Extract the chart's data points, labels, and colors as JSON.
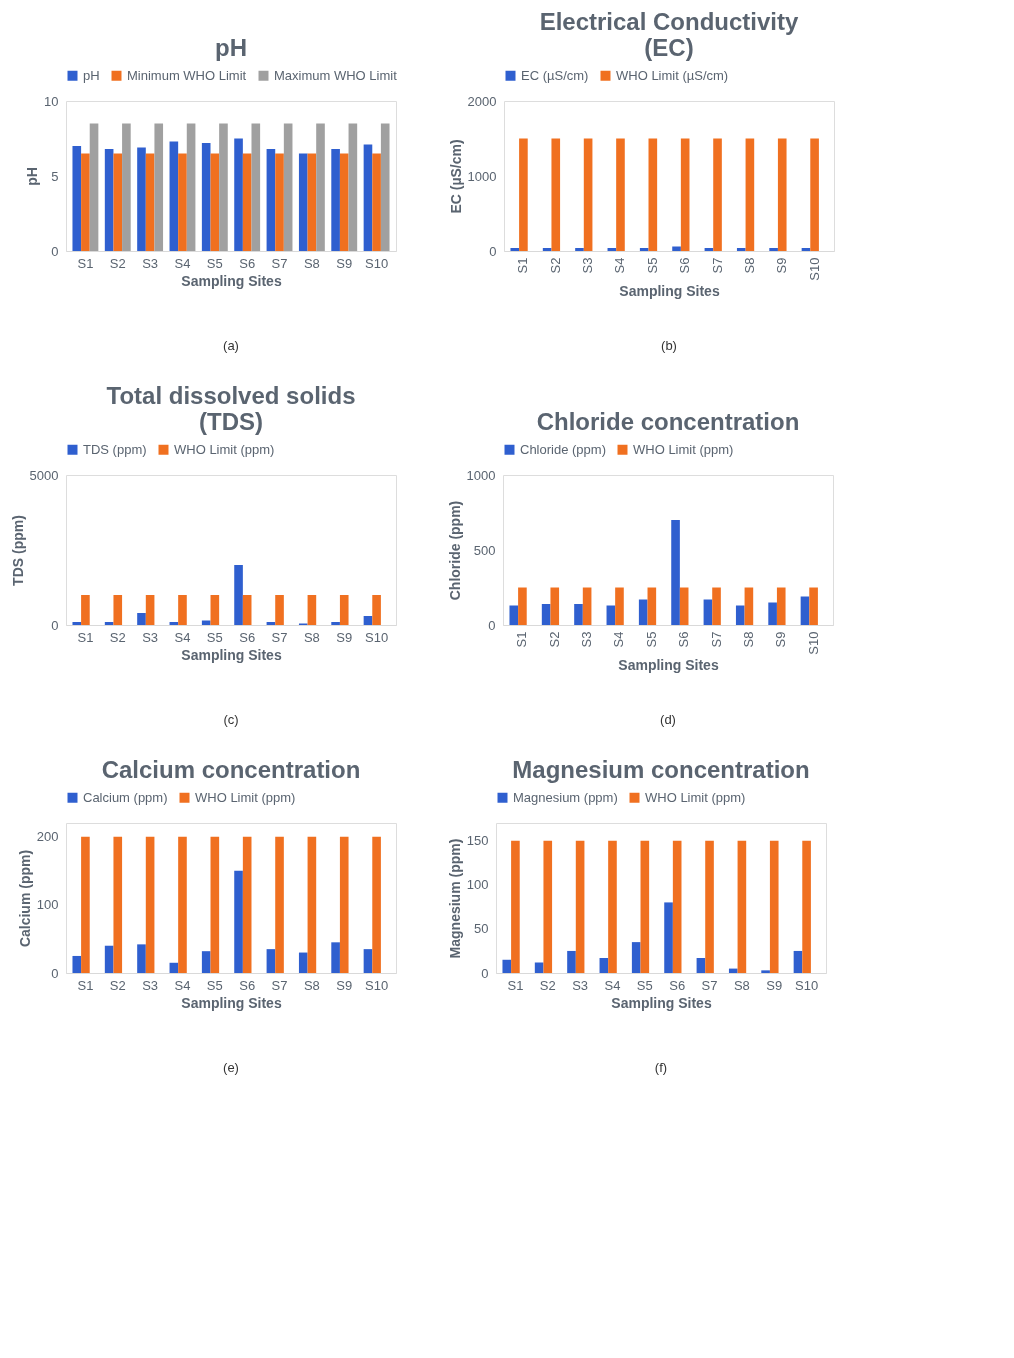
{
  "chart_data": [
    {
      "type": "bar",
      "title": "pH",
      "xlabel": "Sampling Sites",
      "ylabel": "pH",
      "categories": [
        "S1",
        "S2",
        "S3",
        "S4",
        "S5",
        "S6",
        "S7",
        "S8",
        "S9",
        "S10"
      ],
      "series": [
        {
          "name": "pH",
          "color": "#2f5fcf",
          "values": [
            7.0,
            6.8,
            6.9,
            7.3,
            7.2,
            7.5,
            6.8,
            6.5,
            6.8,
            7.1
          ]
        },
        {
          "name": "Minimum WHO Limit",
          "color": "#f07020",
          "values": [
            6.5,
            6.5,
            6.5,
            6.5,
            6.5,
            6.5,
            6.5,
            6.5,
            6.5,
            6.5
          ]
        },
        {
          "name": "Maximum WHO Limit",
          "color": "#a0a0a0",
          "values": [
            8.5,
            8.5,
            8.5,
            8.5,
            8.5,
            8.5,
            8.5,
            8.5,
            8.5,
            8.5
          ]
        }
      ],
      "ylim": [
        0,
        10
      ],
      "yticks": [
        0,
        5,
        10
      ],
      "grid": false,
      "legend": "top",
      "annotations": [
        "(a)"
      ]
    },
    {
      "type": "bar",
      "title": "Electrical Conductivity (EC)",
      "xlabel": "Sampling Sites",
      "ylabel": "EC (µS/cm)",
      "categories": [
        "S1",
        "S2",
        "S3",
        "S4",
        "S5",
        "S6",
        "S7",
        "S8",
        "S9",
        "S10"
      ],
      "series": [
        {
          "name": "EC (µS/cm)",
          "color": "#2f5fcf",
          "values": [
            40,
            40,
            40,
            40,
            40,
            60,
            40,
            40,
            40,
            40
          ]
        },
        {
          "name": "WHO Limit (µS/cm)",
          "color": "#f07020",
          "values": [
            1500,
            1500,
            1500,
            1500,
            1500,
            1500,
            1500,
            1500,
            1500,
            1500
          ]
        }
      ],
      "ylim": [
        0,
        2000
      ],
      "yticks": [
        0,
        1000,
        2000
      ],
      "grid": false,
      "legend": "top",
      "annotations": [
        "(b)"
      ]
    },
    {
      "type": "bar",
      "title": "Total dissolved solids (TDS)",
      "xlabel": "Sampling Sites",
      "ylabel": "TDS (ppm)",
      "categories": [
        "S1",
        "S2",
        "S3",
        "S4",
        "S5",
        "S6",
        "S7",
        "S8",
        "S9",
        "S10"
      ],
      "series": [
        {
          "name": "TDS (ppm)",
          "color": "#2f5fcf",
          "values": [
            100,
            100,
            400,
            100,
            150,
            2000,
            100,
            50,
            100,
            300
          ]
        },
        {
          "name": "WHO Limit (ppm)",
          "color": "#f07020",
          "values": [
            1000,
            1000,
            1000,
            1000,
            1000,
            1000,
            1000,
            1000,
            1000,
            1000
          ]
        }
      ],
      "ylim": [
        0,
        5000
      ],
      "yticks": [
        0,
        5000
      ],
      "grid": false,
      "legend": "top",
      "annotations": [
        "(c)"
      ]
    },
    {
      "type": "bar",
      "title": "Chloride concentration",
      "xlabel": "Sampling Sites",
      "ylabel": "Chloride (ppm)",
      "categories": [
        "S1",
        "S2",
        "S3",
        "S4",
        "S5",
        "S6",
        "S7",
        "S8",
        "S9",
        "S10"
      ],
      "series": [
        {
          "name": "Chloride (ppm)",
          "color": "#2f5fcf",
          "values": [
            130,
            140,
            140,
            130,
            170,
            700,
            170,
            130,
            150,
            190
          ]
        },
        {
          "name": "WHO Limit (ppm)",
          "color": "#f07020",
          "values": [
            250,
            250,
            250,
            250,
            250,
            250,
            250,
            250,
            250,
            250
          ]
        }
      ],
      "ylim": [
        0,
        1000
      ],
      "yticks": [
        0,
        500,
        1000
      ],
      "grid": false,
      "legend": "top",
      "annotations": [
        "(d)"
      ]
    },
    {
      "type": "bar",
      "title": "Calcium concentration",
      "xlabel": "Sampling Sites",
      "ylabel": "Calcium (ppm)",
      "categories": [
        "S1",
        "S2",
        "S3",
        "S4",
        "S5",
        "S6",
        "S7",
        "S8",
        "S9",
        "S10"
      ],
      "series": [
        {
          "name": "Calcium (ppm)",
          "color": "#2f5fcf",
          "values": [
            25,
            40,
            42,
            15,
            32,
            150,
            35,
            30,
            45,
            35
          ]
        },
        {
          "name": "WHO Limit (ppm)",
          "color": "#f07020",
          "values": [
            200,
            200,
            200,
            200,
            200,
            200,
            200,
            200,
            200,
            200
          ]
        }
      ],
      "ylim": [
        0,
        220
      ],
      "yticks": [
        0,
        100,
        200
      ],
      "grid": false,
      "legend": "top",
      "annotations": [
        "(e)"
      ]
    },
    {
      "type": "bar",
      "title": "Magnesium concentration",
      "xlabel": "Sampling Sites",
      "ylabel": "Magnesium (ppm)",
      "categories": [
        "S1",
        "S2",
        "S3",
        "S4",
        "S5",
        "S6",
        "S7",
        "S8",
        "S9",
        "S10"
      ],
      "series": [
        {
          "name": "Magnesium (ppm)",
          "color": "#2f5fcf",
          "values": [
            15,
            12,
            25,
            17,
            35,
            80,
            17,
            5,
            3,
            25
          ]
        },
        {
          "name": "WHO Limit (ppm)",
          "color": "#f07020",
          "values": [
            150,
            150,
            150,
            150,
            150,
            150,
            150,
            150,
            150,
            150
          ]
        }
      ],
      "ylim": [
        0,
        170
      ],
      "yticks": [
        0,
        50,
        100,
        150
      ],
      "grid": false,
      "legend": "top",
      "annotations": [
        "(f)"
      ]
    }
  ]
}
